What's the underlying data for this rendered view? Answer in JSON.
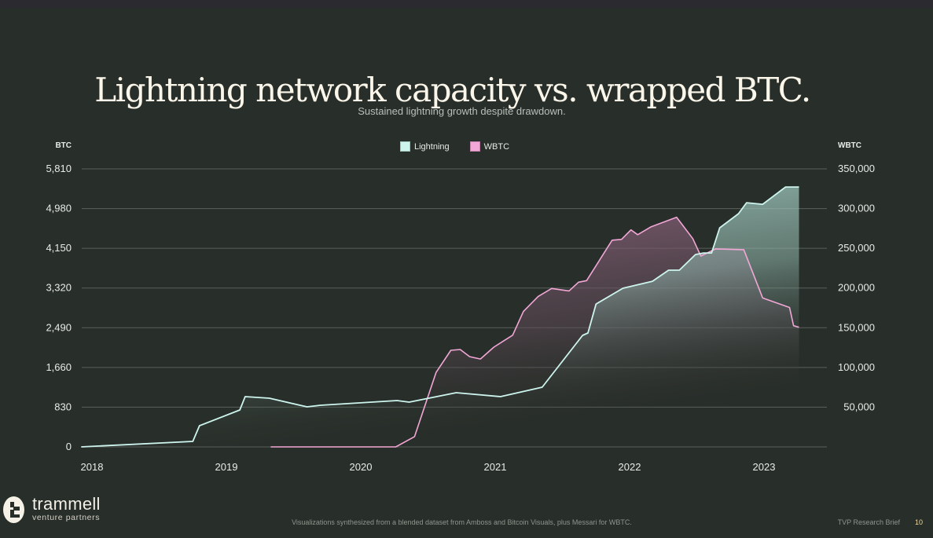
{
  "page": {
    "title": "Lightning network capacity vs. wrapped BTC.",
    "subtitle": "Sustained lightning growth despite drawdown.",
    "footnote": "Visualizations synthesized from a blended dataset from Amboss and Bitcoin Visuals, plus Messari for WBTC.",
    "brief_label": "TVP Research Brief",
    "page_number": "10",
    "logo": {
      "name": "trammell",
      "tagline": "venture partners",
      "icon": "trammell-logo-icon"
    }
  },
  "colors": {
    "background": "#282e29",
    "lightning": "#cdf5ee",
    "lightning_fill": "#a9d8cc",
    "wbtc": "#f2a7d6",
    "wbtc_fill": "#9a6a88",
    "grid": "#5a605b"
  },
  "chart_data": {
    "type": "area",
    "title": "Lightning network capacity vs. wrapped BTC.",
    "subtitle": "Sustained lightning growth despite drawdown.",
    "legend": {
      "placement": "top-center",
      "entries": [
        {
          "label": "Lightning",
          "color": "#cdf5ee"
        },
        {
          "label": "WBTC",
          "color": "#f2a7d6"
        }
      ]
    },
    "x_axis": {
      "label": "",
      "ticks": [
        "2018",
        "2019",
        "2020",
        "2021",
        "2022",
        "2023"
      ],
      "tick_values": [
        2018,
        2019,
        2020,
        2021,
        2022,
        2023
      ],
      "range": [
        2017.92,
        2023.46
      ]
    },
    "y_axis_left": {
      "label": "BTC",
      "ticks": [
        "0",
        "830",
        "1,660",
        "2,490",
        "3,320",
        "4,150",
        "4,980",
        "5,810"
      ],
      "tick_values": [
        0,
        830,
        1660,
        2490,
        3320,
        4150,
        4980,
        5810
      ],
      "range": [
        0,
        5810
      ]
    },
    "y_axis_right": {
      "label": "WBTC",
      "ticks": [
        "50,000",
        "100,000",
        "150,000",
        "200,000",
        "250,000",
        "300,000",
        "350,000"
      ],
      "tick_values": [
        50000,
        100000,
        150000,
        200000,
        250000,
        300000,
        350000
      ],
      "range": [
        0,
        350000
      ]
    },
    "grid": true,
    "series": [
      {
        "name": "Lightning",
        "axis": "left",
        "unit": "BTC",
        "points": [
          [
            2017.92,
            0
          ],
          [
            2018.75,
            115
          ],
          [
            2018.8,
            443
          ],
          [
            2019.1,
            771
          ],
          [
            2019.14,
            1050
          ],
          [
            2019.32,
            1017
          ],
          [
            2019.6,
            837
          ],
          [
            2019.7,
            870
          ],
          [
            2020.27,
            968
          ],
          [
            2020.36,
            935
          ],
          [
            2020.71,
            1132
          ],
          [
            2021.04,
            1050
          ],
          [
            2021.35,
            1247
          ],
          [
            2021.65,
            2330
          ],
          [
            2021.69,
            2380
          ],
          [
            2021.75,
            2986
          ],
          [
            2021.95,
            3315
          ],
          [
            2022.17,
            3462
          ],
          [
            2022.29,
            3692
          ],
          [
            2022.37,
            3692
          ],
          [
            2022.49,
            4020
          ],
          [
            2022.55,
            4053
          ],
          [
            2022.61,
            4053
          ],
          [
            2022.67,
            4578
          ],
          [
            2022.81,
            4873
          ],
          [
            2022.87,
            5103
          ],
          [
            2022.99,
            5070
          ],
          [
            2023.16,
            5431
          ],
          [
            2023.26,
            5431
          ]
        ]
      },
      {
        "name": "WBTC",
        "axis": "right",
        "unit": "WBTC",
        "points": [
          [
            2019.33,
            0
          ],
          [
            2020.26,
            0
          ],
          [
            2020.4,
            12960
          ],
          [
            2020.56,
            93720
          ],
          [
            2020.67,
            121630
          ],
          [
            2020.74,
            122620
          ],
          [
            2020.81,
            113650
          ],
          [
            2020.89,
            110660
          ],
          [
            2020.99,
            125610
          ],
          [
            2021.13,
            140560
          ],
          [
            2021.21,
            170470
          ],
          [
            2021.32,
            189410
          ],
          [
            2021.42,
            199380
          ],
          [
            2021.55,
            196390
          ],
          [
            2021.62,
            207350
          ],
          [
            2021.68,
            209350
          ],
          [
            2021.87,
            260190
          ],
          [
            2021.94,
            261190
          ],
          [
            2022.01,
            273150
          ],
          [
            2022.06,
            267170
          ],
          [
            2022.16,
            277140
          ],
          [
            2022.35,
            289100
          ],
          [
            2022.47,
            262190
          ],
          [
            2022.53,
            240260
          ],
          [
            2022.64,
            249230
          ],
          [
            2022.85,
            248230
          ],
          [
            2022.99,
            187440
          ],
          [
            2023.19,
            175480
          ],
          [
            2023.22,
            152550
          ],
          [
            2023.26,
            150550
          ]
        ]
      }
    ]
  }
}
